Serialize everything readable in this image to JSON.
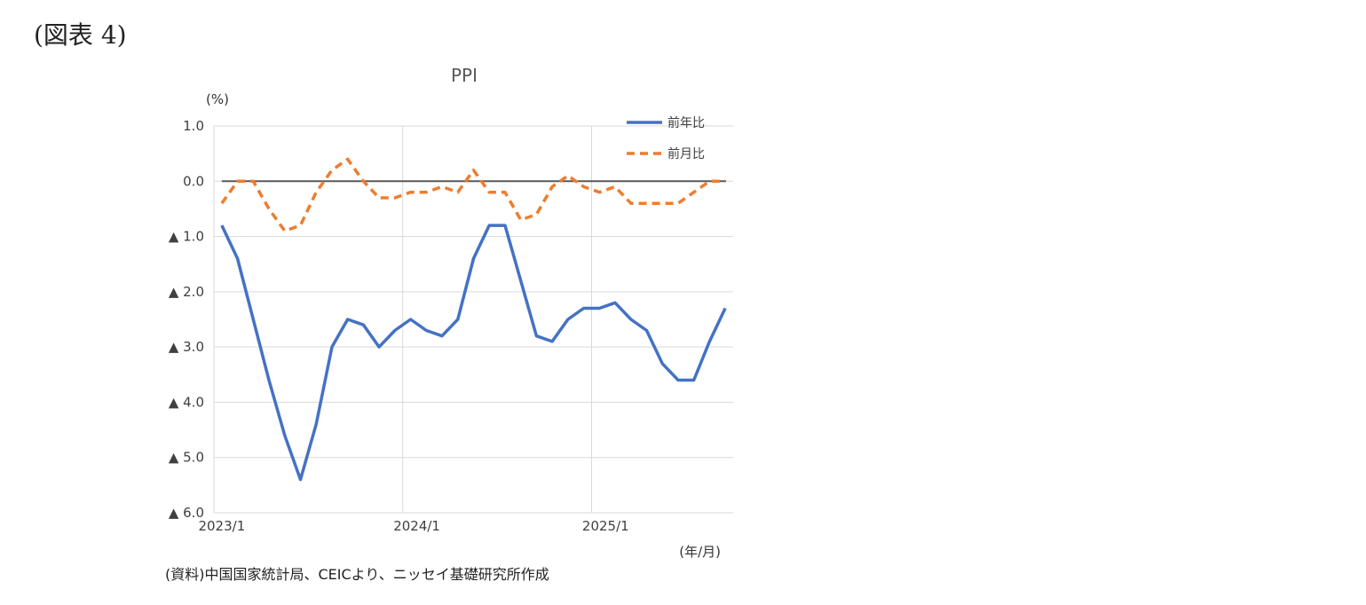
{
  "figure_label": "(図表 4)",
  "source": "(資料)中国国家統計局、CEICより、ニッセイ基礎研究所作成",
  "chart_data": {
    "type": "line",
    "title": "PPI",
    "ylabel": "(%)",
    "xlabel": "(年/月)",
    "ylim": [
      -6.0,
      1.0
    ],
    "yticks": [
      1,
      0,
      -1,
      -2,
      -3,
      -4,
      -5,
      -6
    ],
    "ytick_labels": [
      "1.0",
      "0.0",
      "▲ 1.0",
      "▲ 2.0",
      "▲ 3.0",
      "▲ 4.0",
      "▲ 5.0",
      "▲ 6.0"
    ],
    "xtick_labels": [
      {
        "index": 0,
        "label": "2023/1"
      },
      {
        "index": 12,
        "label": "2024/1"
      },
      {
        "index": 24,
        "label": "2025/1"
      }
    ],
    "x_start": "2023/1",
    "x_end": "2025/9",
    "grid": true,
    "legend_position": "top-right",
    "series": [
      {
        "name": "前年比",
        "color": "#4472C4",
        "dash": false,
        "values": [
          -0.8,
          -1.4,
          -2.5,
          -3.6,
          -4.6,
          -5.4,
          -4.4,
          -3.0,
          -2.5,
          -2.6,
          -3.0,
          -2.7,
          -2.5,
          -2.7,
          -2.8,
          -2.5,
          -1.4,
          -0.8,
          -0.8,
          -1.8,
          -2.8,
          -2.9,
          -2.5,
          -2.3,
          -2.3,
          -2.2,
          -2.5,
          -2.7,
          -3.3,
          -3.6,
          -3.6,
          -2.9,
          -2.3
        ]
      },
      {
        "name": "前月比",
        "color": "#ED7D31",
        "dash": true,
        "values": [
          -0.4,
          0.0,
          0.0,
          -0.5,
          -0.9,
          -0.8,
          -0.2,
          0.2,
          0.4,
          0.0,
          -0.3,
          -0.3,
          -0.2,
          -0.2,
          -0.1,
          -0.2,
          0.2,
          -0.2,
          -0.2,
          -0.7,
          -0.6,
          -0.1,
          0.1,
          -0.1,
          -0.2,
          -0.1,
          -0.4,
          -0.4,
          -0.4,
          -0.4,
          -0.2,
          0.0,
          0.0
        ]
      }
    ]
  }
}
